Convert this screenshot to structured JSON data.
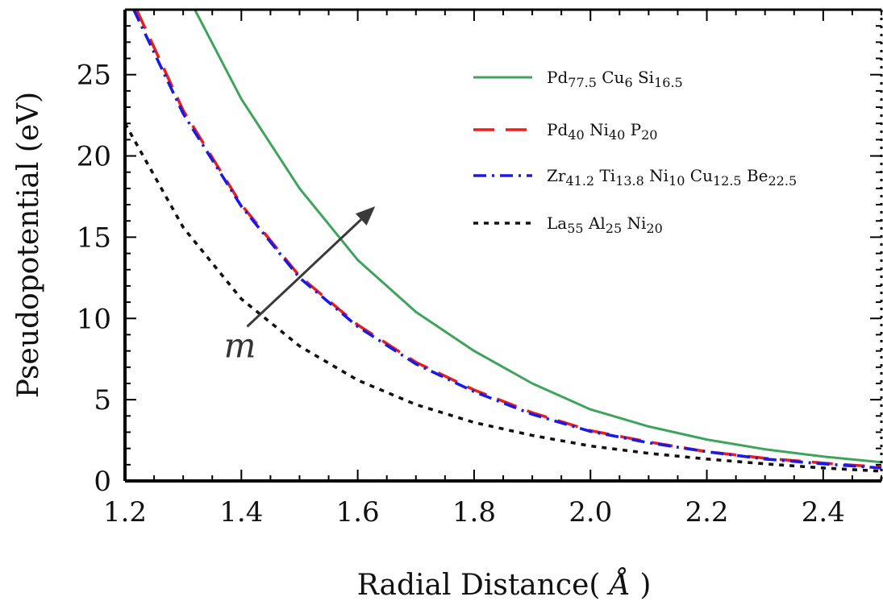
{
  "chart_data": {
    "type": "line",
    "xlabel": "Radial Distance",
    "xlabel_unit": "Å",
    "ylabel": "Pseudopotential (eV)",
    "xlim": [
      1.2,
      2.5
    ],
    "ylim": [
      0,
      29
    ],
    "x_ticks": [
      "1.2",
      "1.4",
      "1.6",
      "1.8",
      "2.0",
      "2.2",
      "2.4"
    ],
    "y_ticks": [
      "0",
      "5",
      "10",
      "15",
      "20",
      "25"
    ],
    "legend_position": "top-right",
    "grid": false,
    "series": [
      {
        "name": "Pd77.5 Cu6 Si16.5",
        "legend": [
          {
            "base": "Pd",
            "sub": "77.5"
          },
          {
            "base": "Cu",
            "sub": "6"
          },
          {
            "base": "Si",
            "sub": "16.5"
          }
        ],
        "color": "#3fa45b",
        "style": "solid",
        "x": [
          1.32,
          1.4,
          1.5,
          1.6,
          1.7,
          1.8,
          1.9,
          2.0,
          2.1,
          2.2,
          2.3,
          2.4,
          2.5
        ],
        "y": [
          29.0,
          23.5,
          18.0,
          13.6,
          10.4,
          8.0,
          6.0,
          4.4,
          3.35,
          2.55,
          1.95,
          1.5,
          1.15
        ]
      },
      {
        "name": "Pd40 Ni40 P20",
        "legend": [
          {
            "base": "Pd",
            "sub": "40"
          },
          {
            "base": "Ni",
            "sub": "40"
          },
          {
            "base": "P",
            "sub": "20"
          }
        ],
        "color": "#e8201c",
        "style": "dashed",
        "x": [
          1.22,
          1.3,
          1.4,
          1.5,
          1.6,
          1.7,
          1.8,
          1.9,
          2.0,
          2.1,
          2.2,
          2.3,
          2.4,
          2.5
        ],
        "y": [
          29.0,
          22.8,
          17.0,
          12.6,
          9.6,
          7.3,
          5.6,
          4.2,
          3.1,
          2.4,
          1.8,
          1.4,
          1.1,
          0.85
        ]
      },
      {
        "name": "Zr41.2 Ti13.8 Ni10 Cu12.5 Be22.5",
        "legend": [
          {
            "base": "Zr",
            "sub": "41.2"
          },
          {
            "base": "Ti",
            "sub": "13.8"
          },
          {
            "base": "Ni",
            "sub": "10"
          },
          {
            "base": "Cu",
            "sub": "12.5"
          },
          {
            "base": "Be",
            "sub": "22.5"
          }
        ],
        "color": "#1a1ae6",
        "style": "dashdot",
        "x": [
          1.215,
          1.3,
          1.4,
          1.5,
          1.6,
          1.7,
          1.8,
          1.9,
          2.0,
          2.1,
          2.2,
          2.3,
          2.4,
          2.5
        ],
        "y": [
          29.0,
          22.6,
          16.9,
          12.5,
          9.5,
          7.2,
          5.5,
          4.1,
          3.05,
          2.35,
          1.8,
          1.35,
          1.05,
          0.8
        ]
      },
      {
        "name": "La55 Al25 Ni20",
        "legend": [
          {
            "base": "La",
            "sub": "55"
          },
          {
            "base": "Al",
            "sub": "25"
          },
          {
            "base": "Ni",
            "sub": "20"
          }
        ],
        "color": "#111111",
        "style": "dotted",
        "x": [
          1.2,
          1.3,
          1.4,
          1.5,
          1.6,
          1.7,
          1.8,
          1.9,
          2.0,
          2.1,
          2.2,
          2.3,
          2.4,
          2.5
        ],
        "y": [
          22.0,
          15.6,
          11.2,
          8.3,
          6.2,
          4.7,
          3.6,
          2.8,
          2.15,
          1.7,
          1.35,
          1.05,
          0.8,
          0.6
        ]
      }
    ],
    "annotations": [
      {
        "text": "m",
        "x": 1.37,
        "y": 7.6,
        "arrow_from": [
          1.41,
          9.5
        ],
        "arrow_to": [
          1.63,
          16.9
        ]
      }
    ]
  }
}
